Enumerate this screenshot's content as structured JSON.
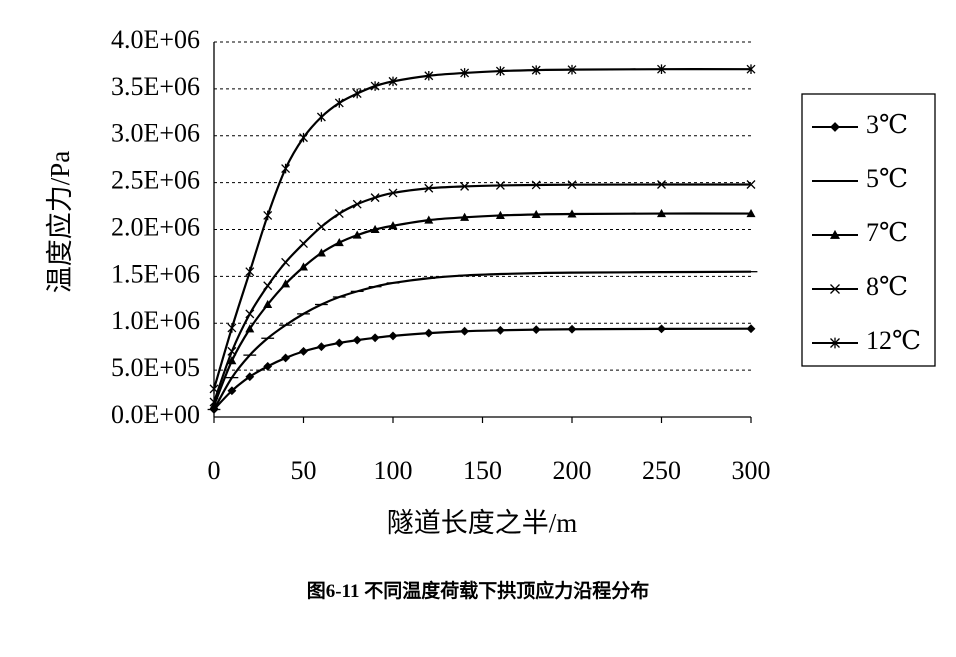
{
  "chart_data": {
    "type": "line",
    "title": "",
    "caption": "图6-11 不同温度荷载下拱顶应力沿程分布",
    "xlabel": "隧道长度之半/m",
    "ylabel": "温度应力/Pa",
    "xlim": [
      0,
      300
    ],
    "ylim": [
      0,
      4000000
    ],
    "xticks": [
      0,
      50,
      100,
      150,
      200,
      250,
      300
    ],
    "xtick_labels": [
      "0",
      "50",
      "100",
      "150",
      "200",
      "250",
      "300"
    ],
    "yticks": [
      0,
      500000,
      1000000,
      1500000,
      2000000,
      2500000,
      3000000,
      3500000,
      4000000
    ],
    "ytick_labels": [
      "0.0E+00",
      "5.0E+05",
      "1.0E+06",
      "1.5E+06",
      "2.0E+06",
      "2.5E+06",
      "3.0E+06",
      "3.5E+06",
      "4.0E+06"
    ],
    "grid": "horizontal dashed",
    "legend_position": "right",
    "x": [
      0,
      10,
      20,
      30,
      40,
      50,
      60,
      70,
      80,
      90,
      100,
      120,
      140,
      160,
      180,
      200,
      250,
      300
    ],
    "series": [
      {
        "name": "3℃",
        "marker": "diamond",
        "values": [
          80000,
          280000,
          430000,
          540000,
          630000,
          700000,
          750000,
          790000,
          820000,
          845000,
          865000,
          895000,
          915000,
          925000,
          932000,
          936000,
          940000,
          942000
        ]
      },
      {
        "name": "5℃",
        "marker": "dash",
        "values": [
          80000,
          420000,
          660000,
          840000,
          980000,
          1100000,
          1200000,
          1280000,
          1340000,
          1390000,
          1430000,
          1480000,
          1510000,
          1525000,
          1535000,
          1540000,
          1545000,
          1550000
        ]
      },
      {
        "name": "7℃",
        "marker": "triangle",
        "values": [
          120000,
          600000,
          940000,
          1200000,
          1420000,
          1600000,
          1750000,
          1860000,
          1940000,
          2000000,
          2040000,
          2100000,
          2130000,
          2150000,
          2160000,
          2165000,
          2170000,
          2170000
        ]
      },
      {
        "name": "8℃",
        "marker": "x",
        "values": [
          160000,
          700000,
          1100000,
          1400000,
          1650000,
          1850000,
          2030000,
          2170000,
          2270000,
          2340000,
          2390000,
          2440000,
          2460000,
          2470000,
          2475000,
          2478000,
          2480000,
          2480000
        ]
      },
      {
        "name": "12℃",
        "marker": "star",
        "values": [
          300000,
          950000,
          1550000,
          2150000,
          2650000,
          2980000,
          3200000,
          3350000,
          3450000,
          3530000,
          3580000,
          3640000,
          3670000,
          3690000,
          3700000,
          3705000,
          3710000,
          3710000
        ]
      }
    ]
  }
}
